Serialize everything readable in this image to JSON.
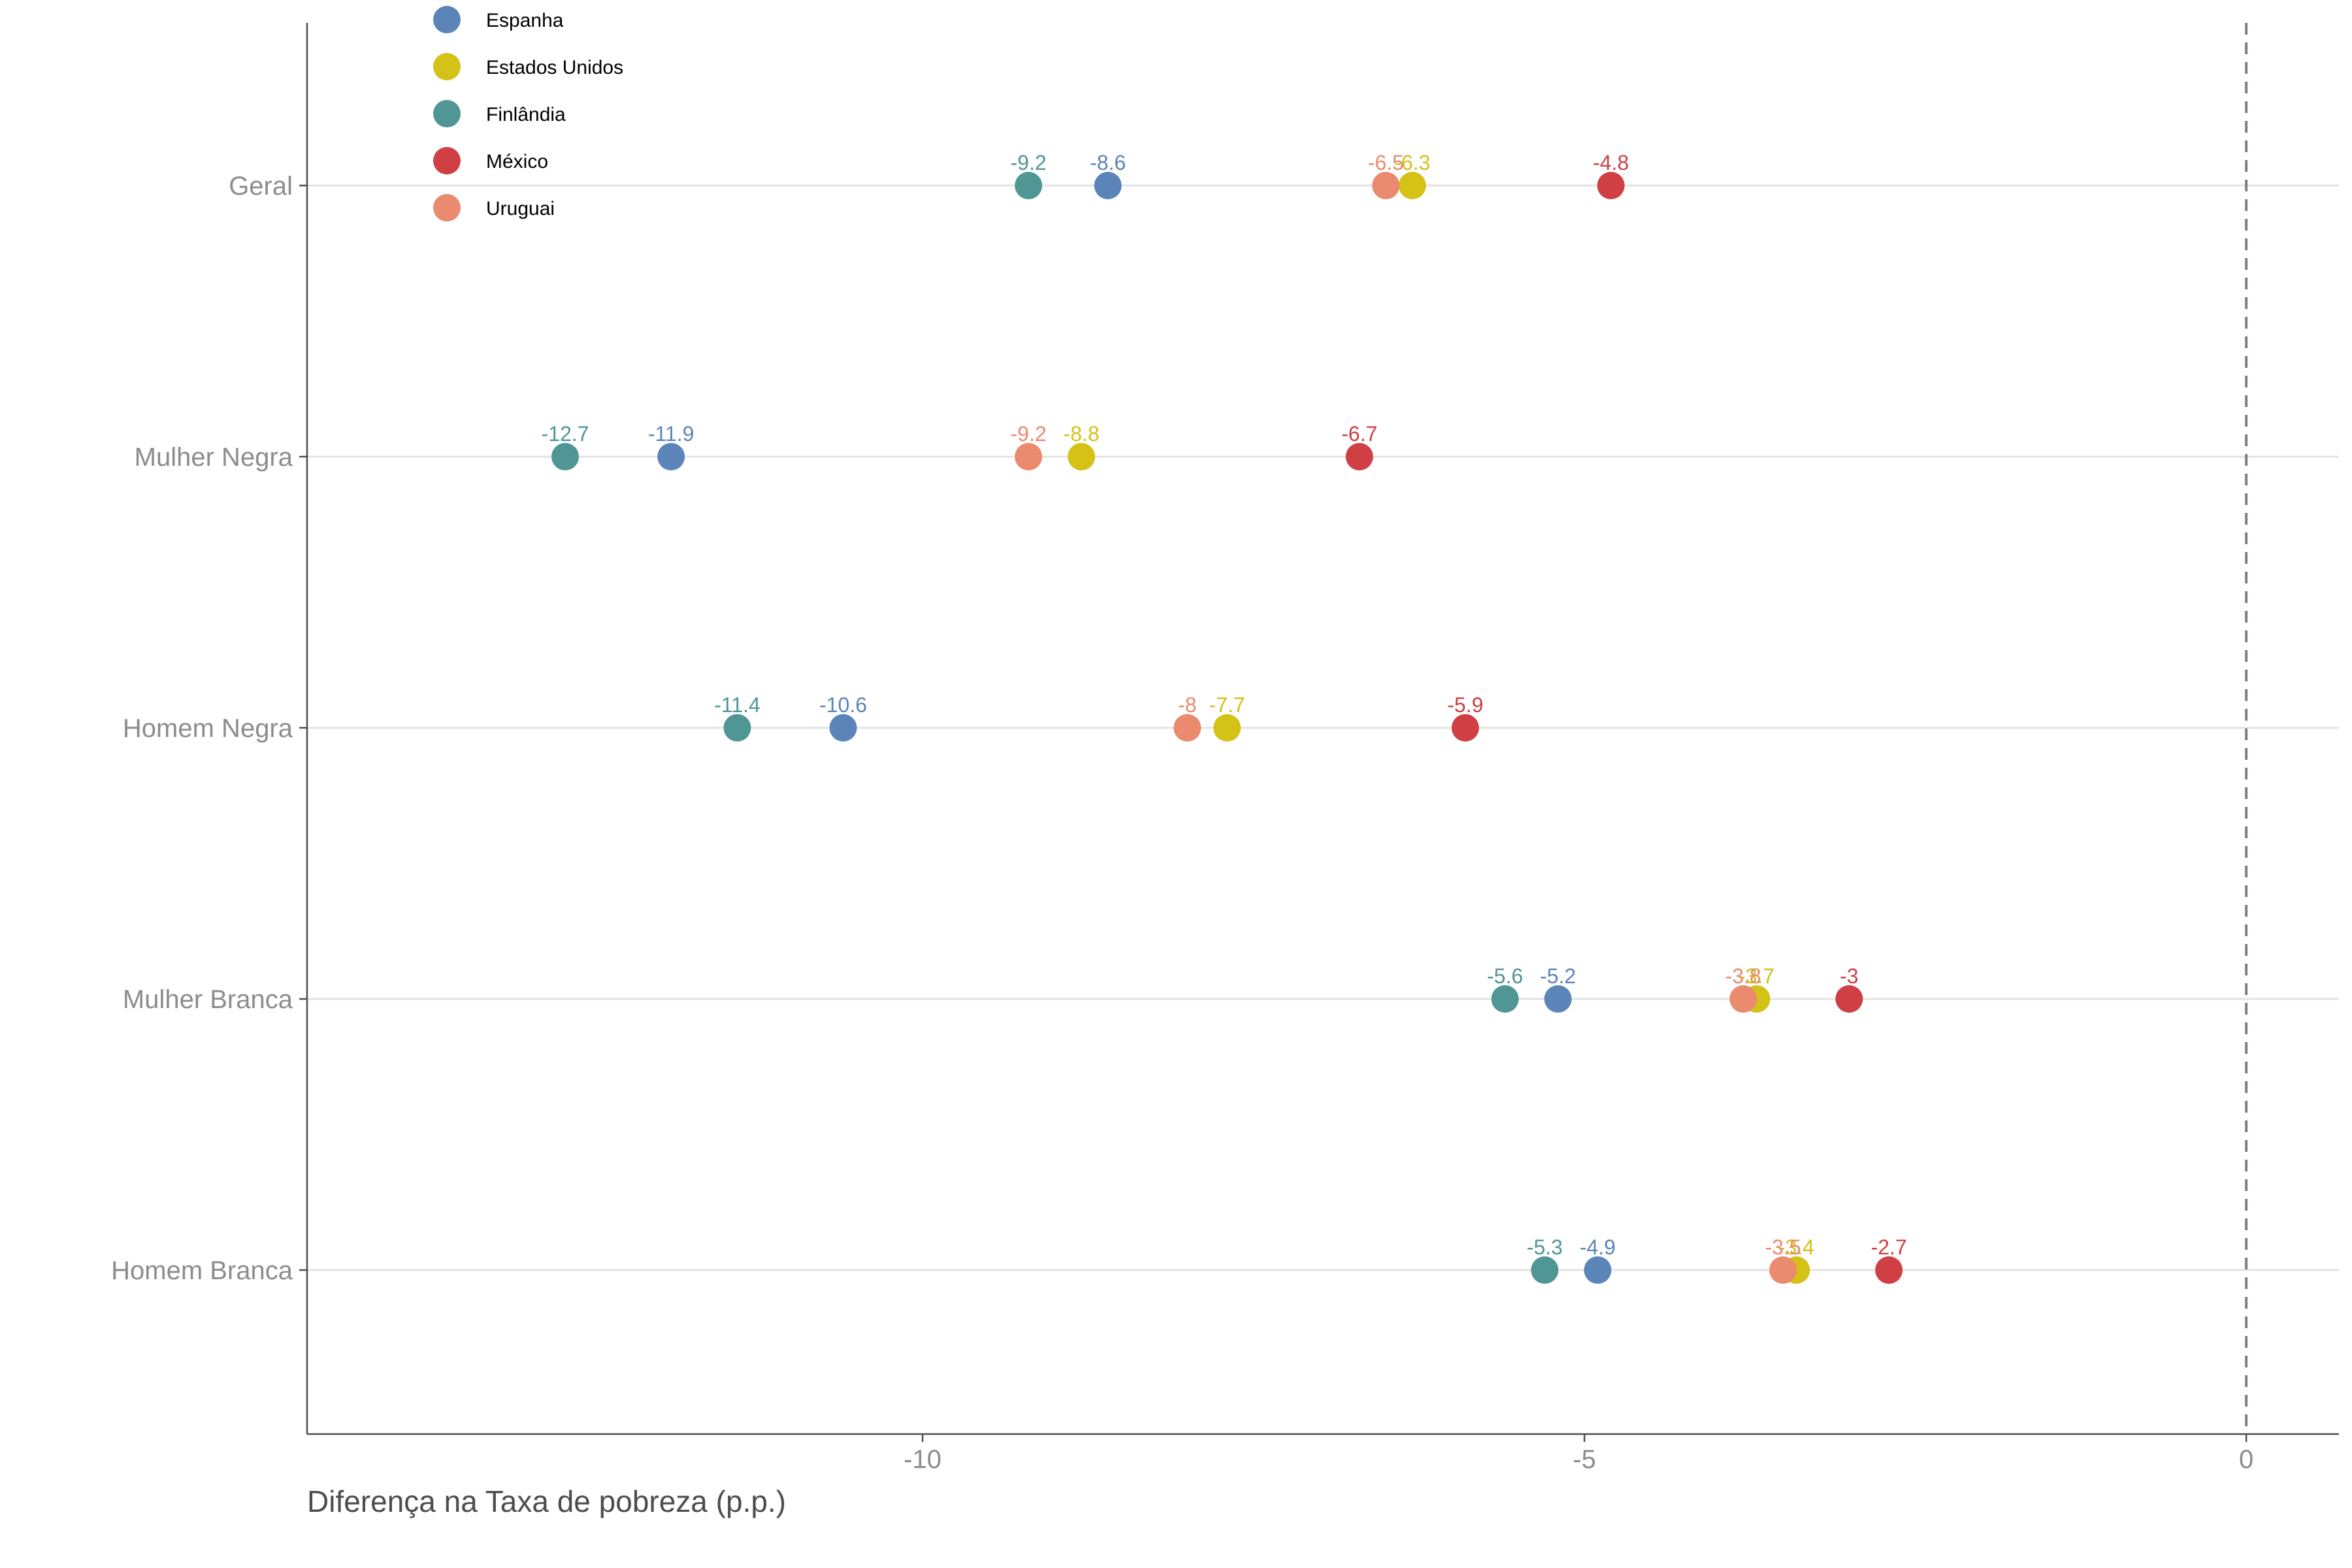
{
  "chart_data": {
    "type": "scatter",
    "xlabel": "Diferença na Taxa de pobreza (p.p.)",
    "ylabel": "",
    "xlim": [
      -14.65,
      0.7
    ],
    "x_ticks": [
      -10,
      -5,
      0
    ],
    "x_tick_labels": [
      "-10",
      "-5",
      "0"
    ],
    "reference_line": {
      "x": 0,
      "style": "dashed"
    },
    "grid": "horizontal-major",
    "legend_position": "top-left",
    "categories": [
      "Geral",
      "Mulher Negra",
      "Homem Negra",
      "Mulher Branca",
      "Homem Branca"
    ],
    "series": [
      {
        "name": "Espanha",
        "color": "#5b85b8",
        "values": [
          -8.6,
          -11.9,
          -10.6,
          -5.2,
          -4.9
        ],
        "labels": [
          "-8.6",
          "-11.9",
          "-10.6",
          "-5.2",
          "-4.9"
        ]
      },
      {
        "name": "Estados Unidos",
        "color": "#d4c217",
        "values": [
          -6.3,
          -8.8,
          -7.7,
          -3.7,
          -3.4
        ],
        "labels": [
          "-6.3",
          "-8.8",
          "-7.7",
          "-3.7",
          "-3.4"
        ]
      },
      {
        "name": "Finlândia",
        "color": "#4f9694",
        "values": [
          -9.2,
          -12.7,
          -11.4,
          -5.6,
          -5.3
        ],
        "labels": [
          "-9.2",
          "-12.7",
          "-11.4",
          "-5.6",
          "-5.3"
        ]
      },
      {
        "name": "México",
        "color": "#cf3f43",
        "values": [
          -4.8,
          -6.7,
          -5.9,
          -3.0,
          -2.7
        ],
        "labels": [
          "-4.8",
          "-6.7",
          "-5.9",
          "-3",
          "-2.7"
        ]
      },
      {
        "name": "Uruguai",
        "color": "#ea8a6e",
        "values": [
          -6.5,
          -9.2,
          -8.0,
          -3.8,
          -3.5
        ],
        "labels": [
          "-6.5",
          "-9.2",
          "-8",
          "-3.8",
          "-3.5"
        ]
      }
    ]
  }
}
